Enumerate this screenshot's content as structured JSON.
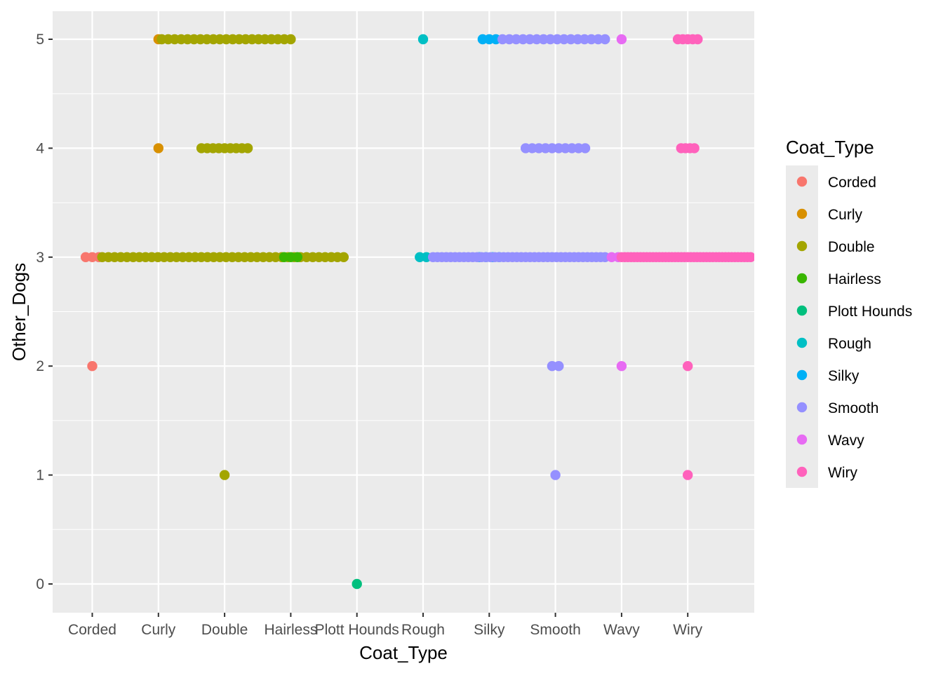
{
  "chart_data": {
    "type": "scatter",
    "title": "",
    "xlabel": "Coat_Type",
    "ylabel": "Other_Dogs",
    "categories": [
      "Corded",
      "Curly",
      "Double",
      "Hairless",
      "Plott Hounds",
      "Rough",
      "Silky",
      "Smooth",
      "Wavy",
      "Wiry"
    ],
    "yticks": [
      0,
      1,
      2,
      3,
      4,
      5
    ],
    "ylim": [
      -0.25,
      5.25
    ],
    "grid": true,
    "legend": {
      "title": "Coat_Type",
      "position": "right",
      "entries": [
        "Corded",
        "Curly",
        "Double",
        "Hairless",
        "Plott Hounds",
        "Rough",
        "Silky",
        "Smooth",
        "Wavy",
        "Wiry"
      ]
    },
    "colors": {
      "Corded": "#F8766D",
      "Curly": "#D89000",
      "Double": "#A3A500",
      "Hairless": "#39B600",
      "Plott Hounds": "#00BF7D",
      "Rough": "#00BFC4",
      "Silky": "#00B0F6",
      "Smooth": "#9590FF",
      "Wavy": "#E76BF3",
      "Wiry": "#FF62BC"
    },
    "series": [
      {
        "name": "Corded",
        "points": [
          {
            "x": "Corded",
            "y": 3,
            "count": 3,
            "spread": [
              -0.1,
              0.1
            ]
          },
          {
            "x": "Corded",
            "y": 2,
            "count": 1,
            "spread": [
              0,
              0
            ]
          }
        ]
      },
      {
        "name": "Curly",
        "points": [
          {
            "x": "Curly",
            "y": 5,
            "count": 1,
            "spread": [
              0,
              0
            ]
          },
          {
            "x": "Curly",
            "y": 4,
            "count": 1,
            "spread": [
              0,
              0
            ]
          }
        ]
      },
      {
        "name": "Double",
        "points": [
          {
            "x": "Double",
            "y": 5,
            "count": 21,
            "spread": [
              -0.95,
              1.0
            ]
          },
          {
            "x": "Double",
            "y": 4,
            "count": 9,
            "spread": [
              -0.35,
              0.35
            ]
          },
          {
            "x": "Double",
            "y": 3,
            "count": 40,
            "spread": [
              -1.85,
              1.8
            ]
          },
          {
            "x": "Double",
            "y": 1,
            "count": 1,
            "spread": [
              0,
              0
            ]
          }
        ]
      },
      {
        "name": "Hairless",
        "points": [
          {
            "x": "Hairless",
            "y": 3,
            "count": 3,
            "spread": [
              -0.1,
              0.1
            ]
          }
        ]
      },
      {
        "name": "Plott Hounds",
        "points": [
          {
            "x": "Plott Hounds",
            "y": 0,
            "count": 1,
            "spread": [
              0,
              0
            ]
          }
        ]
      },
      {
        "name": "Rough",
        "points": [
          {
            "x": "Rough",
            "y": 5,
            "count": 1,
            "spread": [
              0,
              0
            ]
          },
          {
            "x": "Rough",
            "y": 3,
            "count": 2,
            "spread": [
              -0.05,
              0.05
            ]
          }
        ]
      },
      {
        "name": "Silky",
        "points": [
          {
            "x": "Silky",
            "y": 5,
            "count": 3,
            "spread": [
              -0.1,
              0.1
            ]
          },
          {
            "x": "Silky",
            "y": 3,
            "count": 4,
            "spread": [
              -0.15,
              0.15
            ]
          }
        ]
      },
      {
        "name": "Smooth",
        "points": [
          {
            "x": "Smooth",
            "y": 5,
            "count": 16,
            "spread": [
              -0.8,
              0.75
            ]
          },
          {
            "x": "Smooth",
            "y": 4,
            "count": 10,
            "spread": [
              -0.45,
              0.45
            ]
          },
          {
            "x": "Smooth",
            "y": 3,
            "count": 40,
            "spread": [
              -1.85,
              0.75
            ]
          },
          {
            "x": "Smooth",
            "y": 2,
            "count": 2,
            "spread": [
              -0.05,
              0.05
            ]
          },
          {
            "x": "Smooth",
            "y": 1,
            "count": 1,
            "spread": [
              0,
              0
            ]
          }
        ]
      },
      {
        "name": "Wavy",
        "points": [
          {
            "x": "Wavy",
            "y": 5,
            "count": 1,
            "spread": [
              0,
              0
            ]
          },
          {
            "x": "Wavy",
            "y": 3,
            "count": 2,
            "spread": [
              -0.15,
              -0.05
            ]
          },
          {
            "x": "Wavy",
            "y": 2,
            "count": 1,
            "spread": [
              0,
              0
            ]
          }
        ]
      },
      {
        "name": "Wiry",
        "points": [
          {
            "x": "Wiry",
            "y": 5,
            "count": 5,
            "spread": [
              -0.15,
              0.15
            ]
          },
          {
            "x": "Wiry",
            "y": 4,
            "count": 4,
            "spread": [
              -0.1,
              0.1
            ]
          },
          {
            "x": "Wiry",
            "y": 3,
            "count": 42,
            "spread": [
              -1.0,
              0.95
            ]
          },
          {
            "x": "Wiry",
            "y": 2,
            "count": 1,
            "spread": [
              0,
              0
            ]
          },
          {
            "x": "Wiry",
            "y": 1,
            "count": 1,
            "spread": [
              0,
              0
            ]
          }
        ]
      }
    ]
  }
}
